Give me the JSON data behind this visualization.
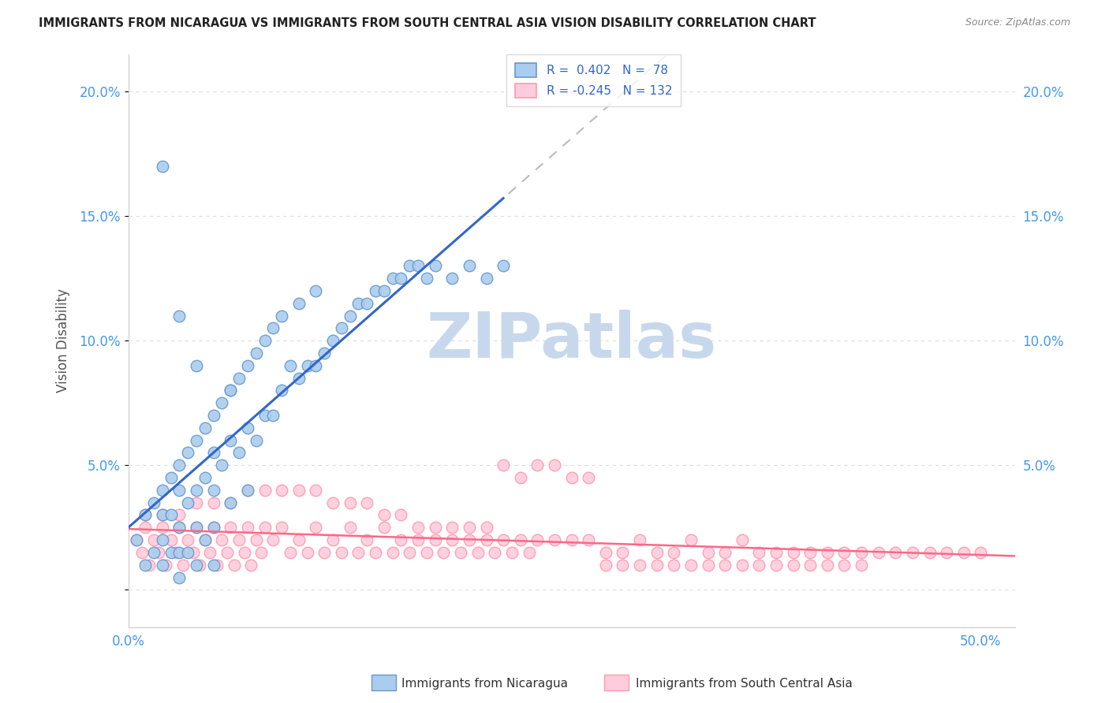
{
  "title": "IMMIGRANTS FROM NICARAGUA VS IMMIGRANTS FROM SOUTH CENTRAL ASIA VISION DISABILITY CORRELATION CHART",
  "source": "Source: ZipAtlas.com",
  "ylabel": "Vision Disability",
  "y_ticks": [
    0.0,
    0.05,
    0.1,
    0.15,
    0.2
  ],
  "y_tick_labels": [
    "",
    "5.0%",
    "10.0%",
    "15.0%",
    "20.0%"
  ],
  "x_lim": [
    0.0,
    0.52
  ],
  "y_lim": [
    -0.015,
    0.215
  ],
  "R_nicaragua": 0.402,
  "N_nicaragua": 78,
  "R_s_central_asia": -0.245,
  "N_s_central_asia": 132,
  "color_nicaragua": "#6699CC",
  "color_nicaragua_fill": "#AACCEE",
  "color_s_central_asia": "#FF99AA",
  "color_s_central_asia_fill": "#FFCCDD",
  "color_trend_nicaragua": "#3366CC",
  "color_trend_s_central_asia": "#FF6688",
  "color_trend_dashed_gray": "#BBBBBB",
  "color_trend_dashed_blue": "#88AADD",
  "watermark_text": "ZIPatlas",
  "watermark_color": "#C8D8EC",
  "background_color": "#FFFFFF",
  "grid_color": "#DDDDDD",
  "nicaragua_x": [
    0.005,
    0.01,
    0.01,
    0.015,
    0.015,
    0.02,
    0.02,
    0.02,
    0.02,
    0.025,
    0.025,
    0.025,
    0.03,
    0.03,
    0.03,
    0.03,
    0.03,
    0.035,
    0.035,
    0.035,
    0.04,
    0.04,
    0.04,
    0.04,
    0.045,
    0.045,
    0.045,
    0.05,
    0.05,
    0.05,
    0.05,
    0.05,
    0.055,
    0.055,
    0.06,
    0.06,
    0.06,
    0.065,
    0.065,
    0.07,
    0.07,
    0.07,
    0.075,
    0.075,
    0.08,
    0.08,
    0.085,
    0.085,
    0.09,
    0.09,
    0.095,
    0.1,
    0.1,
    0.105,
    0.11,
    0.11,
    0.115,
    0.12,
    0.125,
    0.13,
    0.135,
    0.14,
    0.145,
    0.15,
    0.155,
    0.16,
    0.165,
    0.17,
    0.175,
    0.18,
    0.19,
    0.2,
    0.21,
    0.22,
    0.02,
    0.03,
    0.04,
    0.06
  ],
  "nicaragua_y": [
    0.02,
    0.03,
    0.01,
    0.035,
    0.015,
    0.04,
    0.03,
    0.02,
    0.01,
    0.045,
    0.03,
    0.015,
    0.05,
    0.04,
    0.025,
    0.015,
    0.005,
    0.055,
    0.035,
    0.015,
    0.06,
    0.04,
    0.025,
    0.01,
    0.065,
    0.045,
    0.02,
    0.07,
    0.055,
    0.04,
    0.025,
    0.01,
    0.075,
    0.05,
    0.08,
    0.06,
    0.035,
    0.085,
    0.055,
    0.09,
    0.065,
    0.04,
    0.095,
    0.06,
    0.1,
    0.07,
    0.105,
    0.07,
    0.11,
    0.08,
    0.09,
    0.115,
    0.085,
    0.09,
    0.12,
    0.09,
    0.095,
    0.1,
    0.105,
    0.11,
    0.115,
    0.115,
    0.12,
    0.12,
    0.125,
    0.125,
    0.13,
    0.13,
    0.125,
    0.13,
    0.125,
    0.13,
    0.125,
    0.13,
    0.17,
    0.11,
    0.09,
    0.08
  ],
  "s_central_asia_x": [
    0.005,
    0.008,
    0.01,
    0.012,
    0.015,
    0.018,
    0.02,
    0.022,
    0.025,
    0.028,
    0.03,
    0.032,
    0.035,
    0.038,
    0.04,
    0.042,
    0.045,
    0.048,
    0.05,
    0.052,
    0.055,
    0.058,
    0.06,
    0.062,
    0.065,
    0.068,
    0.07,
    0.072,
    0.075,
    0.078,
    0.08,
    0.085,
    0.09,
    0.095,
    0.1,
    0.105,
    0.11,
    0.115,
    0.12,
    0.125,
    0.13,
    0.135,
    0.14,
    0.145,
    0.15,
    0.155,
    0.16,
    0.165,
    0.17,
    0.175,
    0.18,
    0.185,
    0.19,
    0.195,
    0.2,
    0.205,
    0.21,
    0.215,
    0.22,
    0.225,
    0.23,
    0.235,
    0.24,
    0.25,
    0.26,
    0.27,
    0.28,
    0.29,
    0.3,
    0.31,
    0.32,
    0.33,
    0.34,
    0.35,
    0.36,
    0.37,
    0.38,
    0.39,
    0.4,
    0.41,
    0.42,
    0.43,
    0.44,
    0.45,
    0.46,
    0.47,
    0.48,
    0.49,
    0.5,
    0.01,
    0.02,
    0.03,
    0.04,
    0.05,
    0.06,
    0.07,
    0.08,
    0.09,
    0.1,
    0.11,
    0.12,
    0.13,
    0.14,
    0.15,
    0.16,
    0.17,
    0.18,
    0.19,
    0.2,
    0.21,
    0.22,
    0.23,
    0.24,
    0.25,
    0.26,
    0.27,
    0.28,
    0.29,
    0.3,
    0.31,
    0.32,
    0.33,
    0.34,
    0.35,
    0.36,
    0.37,
    0.38,
    0.39,
    0.4,
    0.41,
    0.42,
    0.43
  ],
  "s_central_asia_y": [
    0.02,
    0.015,
    0.025,
    0.01,
    0.02,
    0.015,
    0.025,
    0.01,
    0.02,
    0.015,
    0.025,
    0.01,
    0.02,
    0.015,
    0.025,
    0.01,
    0.02,
    0.015,
    0.025,
    0.01,
    0.02,
    0.015,
    0.025,
    0.01,
    0.02,
    0.015,
    0.025,
    0.01,
    0.02,
    0.015,
    0.025,
    0.02,
    0.025,
    0.015,
    0.02,
    0.015,
    0.025,
    0.015,
    0.02,
    0.015,
    0.025,
    0.015,
    0.02,
    0.015,
    0.025,
    0.015,
    0.02,
    0.015,
    0.02,
    0.015,
    0.02,
    0.015,
    0.02,
    0.015,
    0.02,
    0.015,
    0.02,
    0.015,
    0.02,
    0.015,
    0.02,
    0.015,
    0.02,
    0.02,
    0.02,
    0.02,
    0.015,
    0.015,
    0.02,
    0.015,
    0.015,
    0.02,
    0.015,
    0.015,
    0.02,
    0.015,
    0.015,
    0.015,
    0.015,
    0.015,
    0.015,
    0.015,
    0.015,
    0.015,
    0.015,
    0.015,
    0.015,
    0.015,
    0.015,
    0.03,
    0.03,
    0.03,
    0.035,
    0.035,
    0.035,
    0.04,
    0.04,
    0.04,
    0.04,
    0.04,
    0.035,
    0.035,
    0.035,
    0.03,
    0.03,
    0.025,
    0.025,
    0.025,
    0.025,
    0.025,
    0.05,
    0.045,
    0.05,
    0.05,
    0.045,
    0.045,
    0.01,
    0.01,
    0.01,
    0.01,
    0.01,
    0.01,
    0.01,
    0.01,
    0.01,
    0.01,
    0.01,
    0.01,
    0.01,
    0.01,
    0.01,
    0.01
  ]
}
